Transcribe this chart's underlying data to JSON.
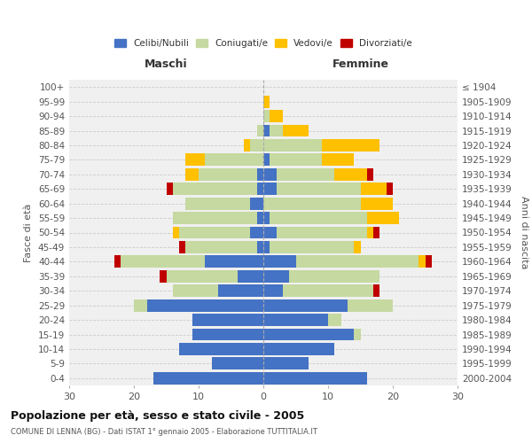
{
  "age_groups_bottom_to_top": [
    "0-4",
    "5-9",
    "10-14",
    "15-19",
    "20-24",
    "25-29",
    "30-34",
    "35-39",
    "40-44",
    "45-49",
    "50-54",
    "55-59",
    "60-64",
    "65-69",
    "70-74",
    "75-79",
    "80-84",
    "85-89",
    "90-94",
    "95-99",
    "100+"
  ],
  "birth_years_bottom_to_top": [
    "2000-2004",
    "1995-1999",
    "1990-1994",
    "1985-1989",
    "1980-1984",
    "1975-1979",
    "1970-1974",
    "1965-1969",
    "1960-1964",
    "1955-1959",
    "1950-1954",
    "1945-1949",
    "1940-1944",
    "1935-1939",
    "1930-1934",
    "1925-1929",
    "1920-1924",
    "1915-1919",
    "1910-1914",
    "1905-1909",
    "≤ 1904"
  ],
  "colors": {
    "celibi": "#4472c4",
    "coniugati": "#c5d9a0",
    "vedovi": "#ffc000",
    "divorziati": "#c00000"
  },
  "male": {
    "celibi": [
      17,
      8,
      13,
      11,
      11,
      18,
      7,
      4,
      9,
      1,
      2,
      1,
      2,
      1,
      1,
      0,
      0,
      0,
      0,
      0,
      0
    ],
    "coniugati": [
      0,
      0,
      0,
      0,
      0,
      2,
      7,
      11,
      13,
      11,
      11,
      13,
      10,
      13,
      9,
      9,
      2,
      1,
      0,
      0,
      0
    ],
    "vedovi": [
      0,
      0,
      0,
      0,
      0,
      0,
      0,
      0,
      0,
      0,
      1,
      0,
      0,
      0,
      2,
      3,
      1,
      0,
      0,
      0,
      0
    ],
    "divorziati": [
      0,
      0,
      0,
      0,
      0,
      0,
      0,
      1,
      1,
      1,
      0,
      0,
      0,
      1,
      0,
      0,
      0,
      0,
      0,
      0,
      0
    ]
  },
  "female": {
    "celibi": [
      16,
      7,
      11,
      14,
      10,
      13,
      3,
      4,
      5,
      1,
      2,
      1,
      0,
      2,
      2,
      1,
      0,
      1,
      0,
      0,
      0
    ],
    "coniugati": [
      0,
      0,
      0,
      1,
      2,
      7,
      14,
      14,
      19,
      13,
      14,
      15,
      15,
      13,
      9,
      8,
      9,
      2,
      1,
      0,
      0
    ],
    "vedovi": [
      0,
      0,
      0,
      0,
      0,
      0,
      0,
      0,
      1,
      1,
      1,
      5,
      5,
      4,
      5,
      5,
      9,
      4,
      2,
      1,
      0
    ],
    "divorziati": [
      0,
      0,
      0,
      0,
      0,
      0,
      1,
      0,
      1,
      0,
      1,
      0,
      0,
      1,
      1,
      0,
      0,
      0,
      0,
      0,
      0
    ]
  },
  "title": "Popolazione per età, sesso e stato civile - 2005",
  "subtitle": "COMUNE DI LENNA (BG) - Dati ISTAT 1° gennaio 2005 - Elaborazione TUTTITALIA.IT",
  "xlabel_left": "Maschi",
  "xlabel_right": "Femmine",
  "ylabel_left": "Fasce di età",
  "ylabel_right": "Anni di nascita",
  "xlim": 30,
  "legend_labels": [
    "Celibi/Nubili",
    "Coniugati/e",
    "Vedovi/e",
    "Divorziati/e"
  ],
  "bg_color": "#ffffff",
  "plot_bg": "#f0f0f0"
}
